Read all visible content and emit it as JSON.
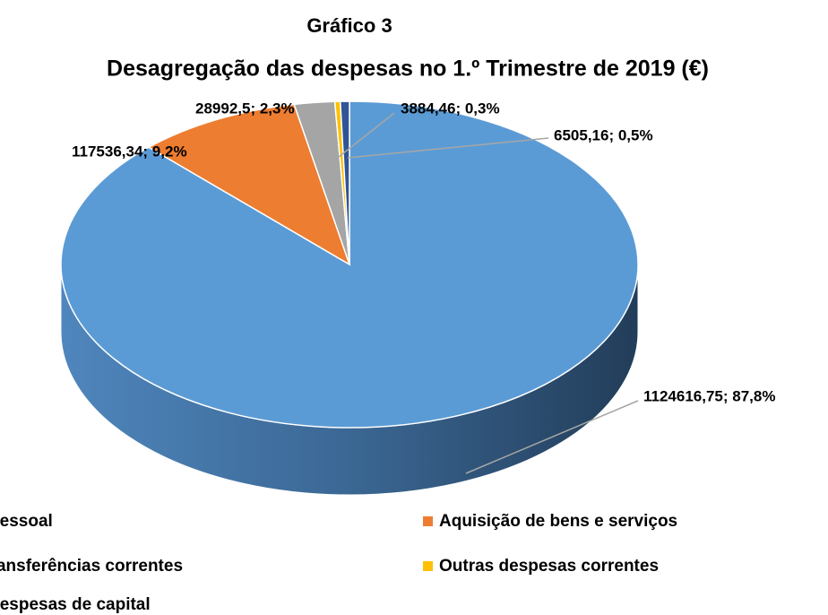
{
  "chart_data": {
    "type": "pie3d",
    "title": "Gráfico 3",
    "subtitle": "Desagregação das despesas no 1.º Trimestre de 2019 (€)",
    "categories": [
      "Pessoal",
      "Aquisição de bens e serviços",
      "Transferências correntes",
      "Outras despesas correntes",
      "Despesas de capital"
    ],
    "values": [
      1124616.75,
      117536.34,
      28992.5,
      3884.46,
      6505.16
    ],
    "value_labels": [
      "1124616,75; 87,8%",
      "117536,34; 9,2%",
      "28992,5; 2,3%",
      "3884,46; 0,3%",
      "6505,16; 0,5%"
    ],
    "colors": [
      "#5b9bd5",
      "#ed7d31",
      "#a5a5a5",
      "#ffc000",
      "#2f5597"
    ],
    "legend": "bottom"
  }
}
